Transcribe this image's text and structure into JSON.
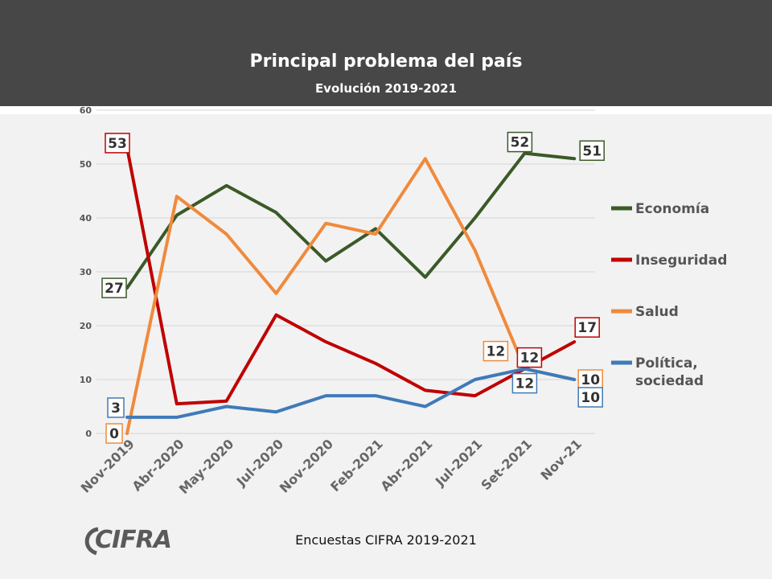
{
  "header": {
    "title": "Principal problema del país",
    "subtitle": "Evolución 2019-2021"
  },
  "footer": {
    "note": "Encuestas CIFRA 2019-2021",
    "logo_text": "CIFRA"
  },
  "chart_data": {
    "type": "line",
    "categories": [
      "Nov-2019",
      "Abr-2020",
      "May-2020",
      "Jul-2020",
      "Nov-2020",
      "Feb-2021",
      "Abr-2021",
      "Jul-2021",
      "Set-2021",
      "Nov-21"
    ],
    "ylim": [
      0,
      60
    ],
    "yticks": [
      0,
      10,
      20,
      30,
      40,
      50,
      60
    ],
    "grid": true,
    "legend_position": "right",
    "series": [
      {
        "name": "Economía",
        "color": "#3a5a28",
        "values": [
          27,
          40.5,
          46,
          41,
          32,
          38,
          29,
          40,
          52,
          51
        ],
        "labeled": [
          "27",
          null,
          null,
          null,
          null,
          null,
          null,
          null,
          "52",
          "51"
        ]
      },
      {
        "name": "Inseguridad",
        "color": "#c00000",
        "values": [
          53,
          5.5,
          6,
          22,
          17,
          13,
          8,
          7,
          12,
          17
        ],
        "labeled": [
          "53",
          null,
          null,
          null,
          null,
          null,
          null,
          null,
          "12",
          "17"
        ]
      },
      {
        "name": "Salud",
        "color": "#f08a3c",
        "values": [
          0,
          44,
          37,
          26,
          39,
          37,
          51,
          34,
          12,
          10
        ],
        "labeled": [
          "0",
          null,
          null,
          null,
          null,
          null,
          null,
          null,
          "12",
          "10"
        ]
      },
      {
        "name": "Política, sociedad",
        "color": "#3f7ab8",
        "values": [
          3,
          3,
          5,
          4,
          7,
          7,
          5,
          10,
          12,
          10
        ],
        "labeled": [
          "3",
          null,
          null,
          null,
          null,
          null,
          null,
          null,
          "12",
          "10"
        ]
      }
    ]
  }
}
